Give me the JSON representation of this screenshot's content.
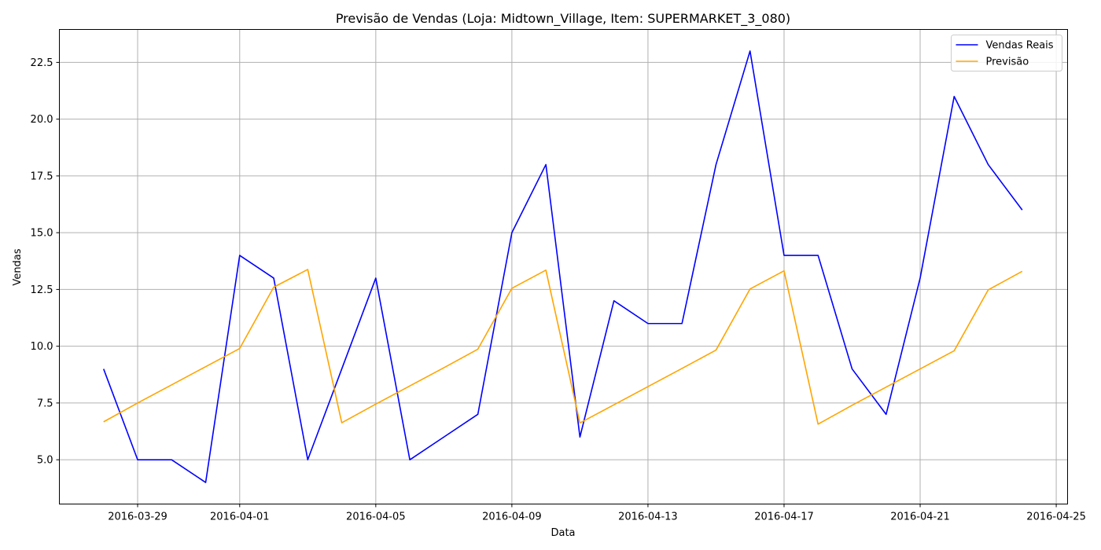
{
  "chart_data": {
    "type": "line",
    "title": "Previsão de Vendas (Loja: Midtown_Village, Item: SUPERMARKET_3_080)",
    "xlabel": "Data",
    "ylabel": "Vendas",
    "x": [
      "2016-03-28",
      "2016-03-29",
      "2016-03-30",
      "2016-03-31",
      "2016-04-01",
      "2016-04-02",
      "2016-04-03",
      "2016-04-04",
      "2016-04-05",
      "2016-04-06",
      "2016-04-07",
      "2016-04-08",
      "2016-04-09",
      "2016-04-10",
      "2016-04-11",
      "2016-04-12",
      "2016-04-13",
      "2016-04-14",
      "2016-04-15",
      "2016-04-16",
      "2016-04-17",
      "2016-04-18",
      "2016-04-19",
      "2016-04-20",
      "2016-04-21",
      "2016-04-22",
      "2016-04-23",
      "2016-04-24"
    ],
    "x_ticks": [
      "2016-03-29",
      "2016-04-01",
      "2016-04-05",
      "2016-04-09",
      "2016-04-13",
      "2016-04-17",
      "2016-04-21",
      "2016-04-25"
    ],
    "y_ticks": [
      5.0,
      7.5,
      10.0,
      12.5,
      15.0,
      17.5,
      20.0,
      22.5
    ],
    "xlim": [
      "2016-03-26T16:48",
      "2016-04-25T08:00"
    ],
    "ylim": [
      3.05,
      23.95
    ],
    "grid": true,
    "legend_position": "top-right",
    "series": [
      {
        "name": "Vendas Reais",
        "color": "#0000ff",
        "values": [
          9,
          5,
          5,
          4,
          14,
          13,
          5,
          9,
          13,
          5,
          6,
          7,
          15,
          18,
          6,
          12,
          11,
          11,
          18,
          23,
          14,
          14,
          9,
          7,
          13,
          21,
          18,
          16
        ]
      },
      {
        "name": "Previsão",
        "color": "#ffa500",
        "values": [
          6.67,
          7.5,
          8.3,
          9.1,
          9.9,
          12.6,
          13.38,
          6.63,
          7.45,
          8.25,
          9.05,
          9.87,
          12.55,
          13.35,
          6.62,
          7.42,
          8.22,
          9.02,
          9.83,
          12.52,
          13.32,
          6.57,
          7.4,
          8.2,
          9.0,
          9.8,
          12.48,
          13.3
        ]
      }
    ]
  }
}
